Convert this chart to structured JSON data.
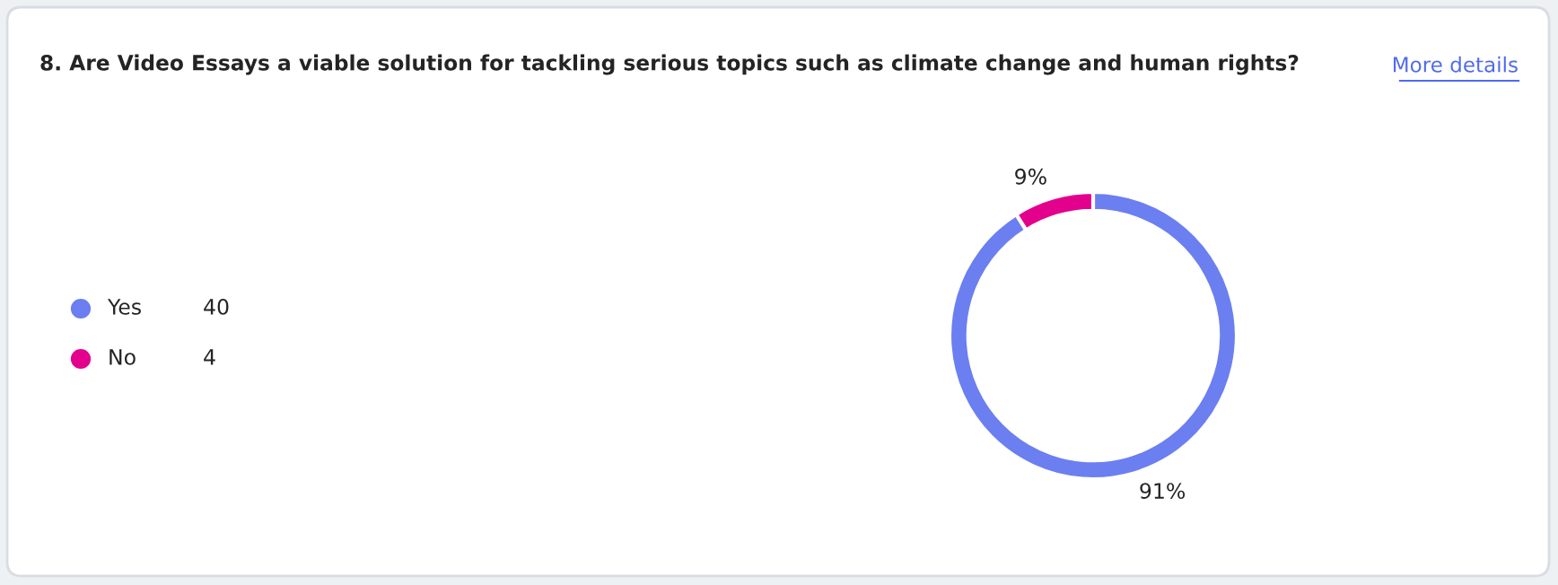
{
  "chart_data": {
    "type": "donut",
    "title": "8. Are Video Essays a viable solution for tackling serious topics such as climate change and human rights?",
    "annotations": [
      "More details",
      "40",
      "4"
    ],
    "categories": [
      "Yes",
      "No"
    ],
    "values": [
      91,
      9
    ],
    "value_labels": [
      "91%",
      "9%"
    ],
    "colors": [
      "#6b7ff0",
      "#e3008c"
    ],
    "legend": "left"
  }
}
